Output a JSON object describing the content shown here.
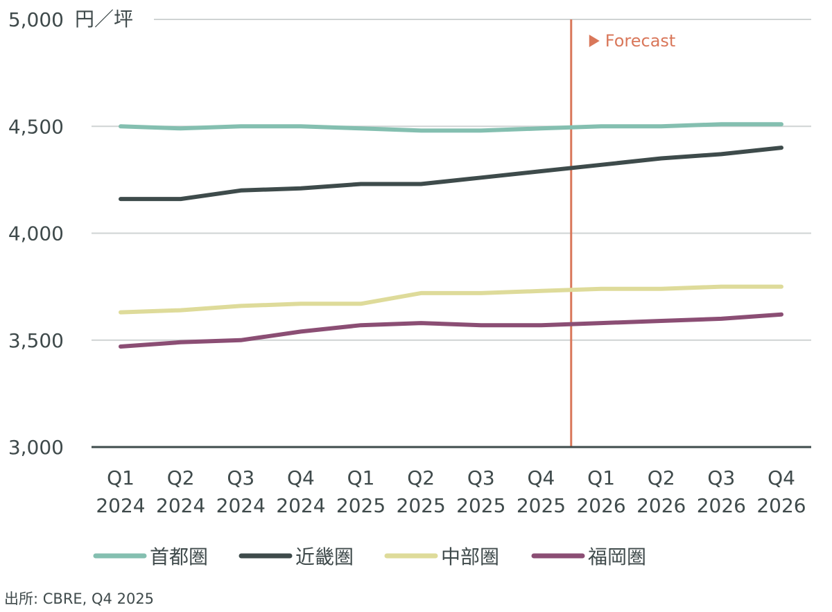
{
  "chart_data": {
    "type": "line",
    "unit_label": "円／坪",
    "categories": [
      [
        "Q1",
        "2024"
      ],
      [
        "Q2",
        "2024"
      ],
      [
        "Q3",
        "2024"
      ],
      [
        "Q4",
        "2024"
      ],
      [
        "Q1",
        "2025"
      ],
      [
        "Q2",
        "2025"
      ],
      [
        "Q3",
        "2025"
      ],
      [
        "Q4",
        "2025"
      ],
      [
        "Q1",
        "2026"
      ],
      [
        "Q2",
        "2026"
      ],
      [
        "Q3",
        "2026"
      ],
      [
        "Q4",
        "2026"
      ]
    ],
    "ylim": [
      3000,
      5000
    ],
    "yticks": [
      3000,
      3500,
      4000,
      4500,
      5000
    ],
    "ytick_labels": [
      "3,000",
      "3,500",
      "4,000",
      "4,500",
      "5,000"
    ],
    "forecast_label": "Forecast",
    "forecast_marker_after_index": 7,
    "forecast_color": "#d9775a",
    "series": [
      {
        "name": "首都圏",
        "color": "#84bfb0",
        "values": [
          4500,
          4490,
          4500,
          4500,
          4490,
          4480,
          4480,
          4490,
          4500,
          4500,
          4510,
          4510
        ]
      },
      {
        "name": "近畿圏",
        "color": "#3e4b4b",
        "values": [
          4160,
          4160,
          4200,
          4210,
          4230,
          4230,
          4260,
          4290,
          4320,
          4350,
          4370,
          4400
        ]
      },
      {
        "name": "中部圏",
        "color": "#dedb9a",
        "values": [
          3630,
          3640,
          3660,
          3670,
          3670,
          3720,
          3720,
          3730,
          3740,
          3740,
          3750,
          3750
        ]
      },
      {
        "name": "福岡圏",
        "color": "#8b4e74",
        "values": [
          3470,
          3490,
          3500,
          3540,
          3570,
          3580,
          3570,
          3570,
          3580,
          3590,
          3600,
          3620
        ]
      }
    ]
  },
  "source": "出所: CBRE, Q4 2025"
}
